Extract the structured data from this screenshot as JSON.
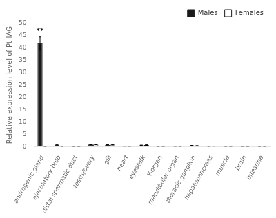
{
  "chart_data": {
    "type": "bar",
    "categories": [
      "androgenic gland",
      "ejaculatory bulb",
      "distal spermatic duct",
      "testis/ovary",
      "gill",
      "heart",
      "eyestalk",
      "Y-organ",
      "mandibular organ",
      "thoracic ganglion",
      "hepatopancreas",
      "muscle",
      "brain",
      "intestine"
    ],
    "series": [
      {
        "name": "Males",
        "color": "#1a1a1a",
        "values": [
          42.0,
          0.75,
          0.05,
          0.85,
          0.75,
          0.15,
          0.55,
          0.05,
          0.1,
          0.45,
          0.1,
          0.07,
          0.07,
          0.07
        ],
        "errors": [
          2.5,
          0.12,
          0.02,
          0.1,
          0.08,
          0.05,
          0.08,
          0.02,
          0.02,
          0.06,
          0.03,
          0.02,
          0.02,
          0.02
        ]
      },
      {
        "name": "Females",
        "color": "#ffffff",
        "values": [
          0.05,
          0.05,
          0.05,
          0.9,
          0.8,
          0.1,
          0.65,
          0.05,
          0.05,
          0.35,
          0.15,
          0.07,
          0.05,
          0.07
        ],
        "errors": [
          0.02,
          0.02,
          0.02,
          0.12,
          0.1,
          0.03,
          0.1,
          0.02,
          0.02,
          0.05,
          0.04,
          0.02,
          0.02,
          0.02
        ]
      }
    ],
    "ylabel": "Relative expression level of Pt-IAG",
    "ylim": [
      0,
      50
    ],
    "yticks": [
      0,
      5,
      10,
      15,
      20,
      25,
      30,
      35,
      40,
      45,
      50
    ],
    "annotations": [
      {
        "text": "**",
        "series": "Males",
        "category": "androgenic gland"
      }
    ],
    "legend": "upper right",
    "grid": false
  }
}
